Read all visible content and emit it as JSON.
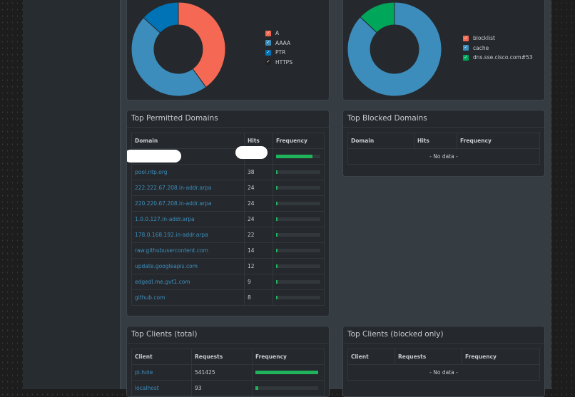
{
  "query_types": {
    "chart_data": {
      "type": "pie",
      "donut": true,
      "categories": [
        "A",
        "AAAA",
        "PTR",
        "HTTPS"
      ],
      "values": [
        40,
        46.7,
        13.3,
        0
      ],
      "colors": [
        "#f56954",
        "#3c8dbc",
        "#0073b7",
        "#222222"
      ]
    }
  },
  "upstreams": {
    "chart_data": {
      "type": "pie",
      "donut": true,
      "categories": [
        "blocklist",
        "cache",
        "dns.sse.cisco.com#53"
      ],
      "values": [
        0,
        87,
        13
      ],
      "colors": [
        "#f56954",
        "#3c8dbc",
        "#00a65a"
      ]
    }
  },
  "permitted": {
    "title": "Top Permitted Domains",
    "headers": [
      "Domain",
      "Hits",
      "Frequency"
    ],
    "rows": [
      {
        "domain": "",
        "hits": "",
        "freq": 0.82
      },
      {
        "domain": "pool.ntp.org",
        "hits": "38",
        "freq": 0.03
      },
      {
        "domain": "222.222.67.208.in-addr.arpa",
        "hits": "24",
        "freq": 0.02
      },
      {
        "domain": "220.220.67.208.in-addr.arpa",
        "hits": "24",
        "freq": 0.02
      },
      {
        "domain": "1.0.0.127.in-addr.arpa",
        "hits": "24",
        "freq": 0.02
      },
      {
        "domain": "178.0.168.192.in-addr.arpa",
        "hits": "22",
        "freq": 0.02
      },
      {
        "domain": "raw.githubusercontent.com",
        "hits": "14",
        "freq": 0.01
      },
      {
        "domain": "update.googleapis.com",
        "hits": "12",
        "freq": 0.01
      },
      {
        "domain": "edgedl.me.gvt1.com",
        "hits": "9",
        "freq": 0.01
      },
      {
        "domain": "github.com",
        "hits": "8",
        "freq": 0.01
      }
    ]
  },
  "blocked": {
    "title": "Top Blocked Domains",
    "headers": [
      "Domain",
      "Hits",
      "Frequency"
    ],
    "empty": "- No data -"
  },
  "clients": {
    "title": "Top Clients (total)",
    "headers": [
      "Client",
      "Requests",
      "Frequency"
    ],
    "rows": [
      {
        "client": "pi.hole",
        "requests": "541425",
        "freq": 1.0
      },
      {
        "client": "localhost",
        "requests": "93",
        "freq": 0.04
      }
    ]
  },
  "clients_blocked": {
    "title": "Top Clients (blocked only)",
    "headers": [
      "Client",
      "Requests",
      "Frequency"
    ],
    "empty": "- No data -"
  }
}
